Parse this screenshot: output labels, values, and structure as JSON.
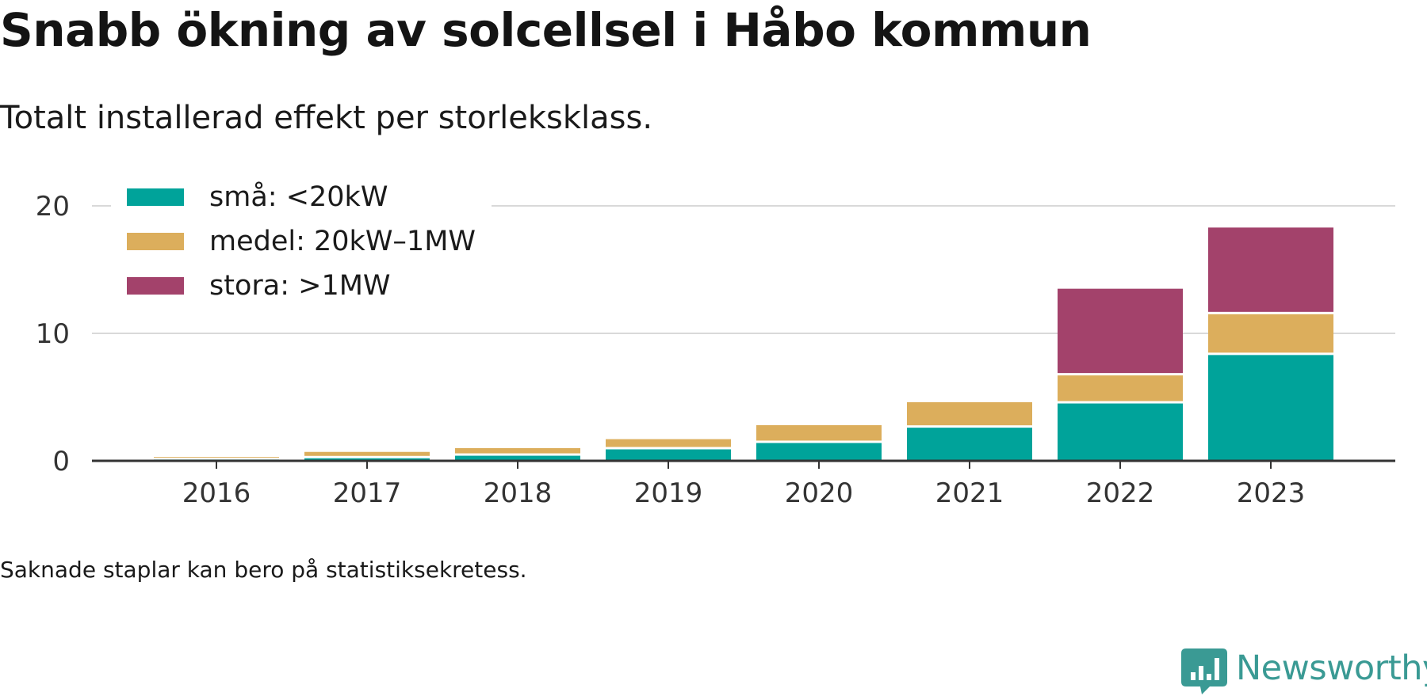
{
  "header": {
    "title": "Snabb ökning av solcellsel i Håbo kommun",
    "subtitle": "Totalt installerad effekt per storleksklass."
  },
  "footer": {
    "note": "Saknade staplar kan bero på statistiksekretess.",
    "brand": "Newsworthy"
  },
  "colors": {
    "small": "#00a39a",
    "medium": "#dcae5c",
    "large": "#a3426b",
    "brand": "#3a9a94"
  },
  "chart_data": {
    "type": "bar",
    "stacked": true,
    "categories": [
      "2016",
      "2017",
      "2018",
      "2019",
      "2020",
      "2021",
      "2022",
      "2023"
    ],
    "series": [
      {
        "name": "små: <20kW",
        "color": "#00a39a",
        "values": [
          0.1,
          0.2,
          0.4,
          0.9,
          1.4,
          2.6,
          4.5,
          8.3
        ]
      },
      {
        "name": "medel: 20kW–1MW",
        "color": "#dcae5c",
        "values": [
          0.2,
          0.5,
          0.6,
          0.8,
          1.4,
          2.0,
          2.2,
          3.2
        ]
      },
      {
        "name": "stora: >1MW",
        "color": "#a3426b",
        "values": [
          0,
          0,
          0,
          0,
          0,
          0,
          6.8,
          6.8
        ]
      }
    ],
    "ylim": [
      0,
      20
    ],
    "yticks": [
      0,
      10,
      20
    ],
    "grid": true,
    "legend": "top-left"
  }
}
